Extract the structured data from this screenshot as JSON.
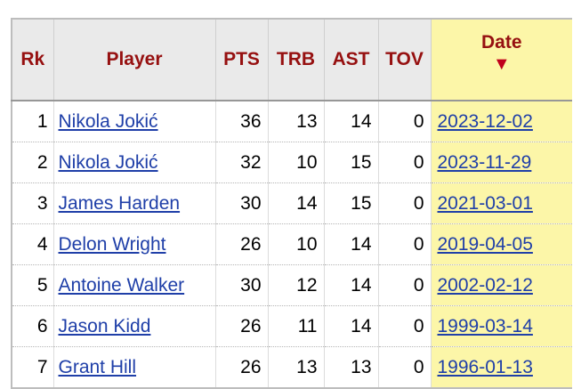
{
  "table": {
    "columns": {
      "rk": "Rk",
      "player": "Player",
      "pts": "PTS",
      "trb": "TRB",
      "ast": "AST",
      "tov": "TOV",
      "date": "Date",
      "sort_indicator": "▼"
    },
    "sort": {
      "column": "Date",
      "direction": "descending"
    },
    "rows": [
      {
        "rk": "1",
        "player": "Nikola Jokić",
        "pts": "36",
        "trb": "13",
        "ast": "14",
        "tov": "0",
        "date": "2023-12-02"
      },
      {
        "rk": "2",
        "player": "Nikola Jokić",
        "pts": "32",
        "trb": "10",
        "ast": "15",
        "tov": "0",
        "date": "2023-11-29"
      },
      {
        "rk": "3",
        "player": "James Harden",
        "pts": "30",
        "trb": "14",
        "ast": "15",
        "tov": "0",
        "date": "2021-03-01"
      },
      {
        "rk": "4",
        "player": "Delon Wright",
        "pts": "26",
        "trb": "10",
        "ast": "14",
        "tov": "0",
        "date": "2019-04-05"
      },
      {
        "rk": "5",
        "player": "Antoine Walker",
        "pts": "30",
        "trb": "12",
        "ast": "14",
        "tov": "0",
        "date": "2002-02-12"
      },
      {
        "rk": "6",
        "player": "Jason Kidd",
        "pts": "26",
        "trb": "11",
        "ast": "14",
        "tov": "0",
        "date": "1999-03-14"
      },
      {
        "rk": "7",
        "player": "Grant Hill",
        "pts": "26",
        "trb": "13",
        "ast": "13",
        "tov": "0",
        "date": "1996-01-13"
      }
    ]
  },
  "colors": {
    "header_text": "#961010",
    "header_bg": "#eaeaea",
    "sorted_bg": "#fcf6a8",
    "link": "#1f3fa8",
    "sort_arrow": "#c0001c"
  }
}
